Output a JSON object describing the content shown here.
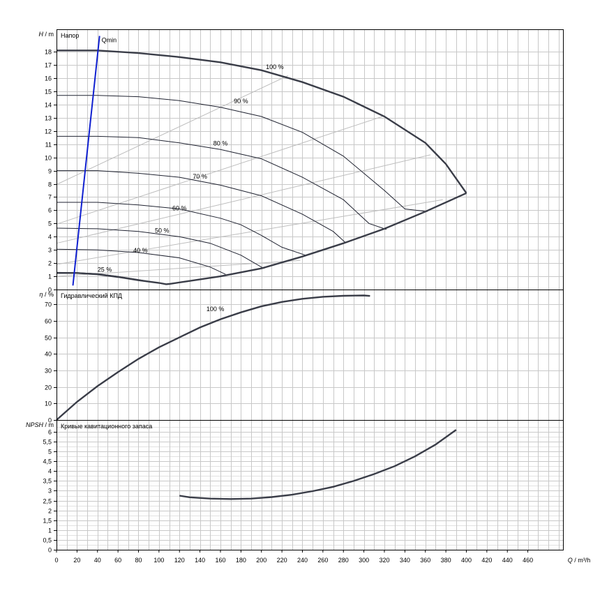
{
  "colors": {
    "grid": "#c8c8c8",
    "curve": "#3a3d48",
    "qmin": "#1020d0"
  },
  "chart_data": [
    {
      "type": "line",
      "panel": "head",
      "title": "Напор",
      "ylabel_sym": "H",
      "ylabel_unit": " / m",
      "ylim": [
        0,
        19.7
      ],
      "yticks": [
        0,
        1,
        2,
        3,
        4,
        5,
        6,
        7,
        8,
        9,
        10,
        11,
        12,
        13,
        14,
        15,
        16,
        17,
        18
      ],
      "max_curve": [
        [
          0,
          18.1
        ],
        [
          40,
          18.1
        ],
        [
          80,
          17.9
        ],
        [
          120,
          17.6
        ],
        [
          160,
          17.2
        ],
        [
          200,
          16.6
        ],
        [
          240,
          15.7
        ],
        [
          280,
          14.6
        ],
        [
          320,
          13.1
        ],
        [
          360,
          11.1
        ],
        [
          380,
          9.5
        ],
        [
          400,
          7.3
        ]
      ],
      "min_curve": [
        [
          0,
          1.25
        ],
        [
          20,
          1.25
        ],
        [
          40,
          1.15
        ],
        [
          60,
          0.95
        ],
        [
          80,
          0.7
        ],
        [
          100,
          0.5
        ],
        [
          107,
          0.4
        ],
        [
          110,
          0.42
        ],
        [
          130,
          0.65
        ],
        [
          160,
          1.0
        ],
        [
          200,
          1.6
        ],
        [
          240,
          2.5
        ],
        [
          280,
          3.5
        ],
        [
          320,
          4.6
        ],
        [
          360,
          5.9
        ],
        [
          400,
          7.3
        ]
      ],
      "speed_curves": [
        {
          "label": "90 %",
          "label_pos": [
            180,
            14.1
          ],
          "points": [
            [
              0,
              14.7
            ],
            [
              40,
              14.7
            ],
            [
              80,
              14.6
            ],
            [
              120,
              14.3
            ],
            [
              160,
              13.8
            ],
            [
              200,
              13.1
            ],
            [
              240,
              11.9
            ],
            [
              280,
              10.1
            ],
            [
              320,
              7.5
            ],
            [
              340,
              6.1
            ],
            [
              362,
              5.9
            ]
          ]
        },
        {
          "label": "80 %",
          "label_pos": [
            160,
            10.9
          ],
          "points": [
            [
              0,
              11.6
            ],
            [
              40,
              11.6
            ],
            [
              80,
              11.5
            ],
            [
              120,
              11.1
            ],
            [
              160,
              10.6
            ],
            [
              200,
              9.9
            ],
            [
              240,
              8.5
            ],
            [
              280,
              6.8
            ],
            [
              305,
              5.0
            ],
            [
              322,
              4.55
            ]
          ]
        },
        {
          "label": "70 %",
          "label_pos": [
            140,
            8.4
          ],
          "points": [
            [
              0,
              9.0
            ],
            [
              40,
              9.0
            ],
            [
              80,
              8.8
            ],
            [
              120,
              8.5
            ],
            [
              160,
              7.9
            ],
            [
              200,
              7.1
            ],
            [
              240,
              5.7
            ],
            [
              270,
              4.4
            ],
            [
              282,
              3.55
            ]
          ]
        },
        {
          "label": "60 %",
          "label_pos": [
            120,
            6.0
          ],
          "points": [
            [
              0,
              6.6
            ],
            [
              40,
              6.6
            ],
            [
              80,
              6.4
            ],
            [
              120,
              6.1
            ],
            [
              160,
              5.4
            ],
            [
              180,
              4.9
            ],
            [
              200,
              4.1
            ],
            [
              220,
              3.2
            ],
            [
              243,
              2.6
            ]
          ]
        },
        {
          "label": "50 %",
          "label_pos": [
            103,
            4.3
          ],
          "points": [
            [
              0,
              4.65
            ],
            [
              40,
              4.6
            ],
            [
              80,
              4.4
            ],
            [
              120,
              4.0
            ],
            [
              150,
              3.5
            ],
            [
              180,
              2.6
            ],
            [
              200,
              1.7
            ],
            [
              203,
              1.6
            ]
          ]
        },
        {
          "label": "40 %",
          "label_pos": [
            82,
            2.8
          ],
          "points": [
            [
              0,
              3.05
            ],
            [
              40,
              3.0
            ],
            [
              80,
              2.8
            ],
            [
              120,
              2.4
            ],
            [
              150,
              1.7
            ],
            [
              165,
              1.15
            ]
          ]
        },
        {
          "label": "25 %",
          "label_pos": [
            47,
            1.35
          ],
          "points": [
            [
              0,
              1.3
            ],
            [
              20,
              1.28
            ],
            [
              40,
              1.2
            ],
            [
              60,
              1.0
            ],
            [
              80,
              0.75
            ],
            [
              100,
              0.5
            ],
            [
              107,
              0.42
            ]
          ]
        }
      ],
      "rays": [
        [
          [
            0,
            7.95
          ],
          [
            226,
            16.2
          ]
        ],
        [
          [
            0,
            4.95
          ],
          [
            318,
            13.1
          ]
        ],
        [
          [
            0,
            3.5
          ],
          [
            365,
            10.2
          ]
        ],
        [
          [
            0,
            1.9
          ],
          [
            377,
            6.8
          ]
        ],
        [
          [
            0,
            1.0
          ],
          [
            238,
            2.2
          ]
        ]
      ],
      "max_label": {
        "text": "100 %",
        "pos": [
          213,
          16.7
        ]
      },
      "qmin": {
        "label": "Qmin",
        "points": [
          [
            16,
            0.3
          ],
          [
            42,
            19.2
          ]
        ]
      }
    },
    {
      "type": "line",
      "panel": "efficiency",
      "title": "Гидравлический КПД",
      "ylabel_sym": "η",
      "ylabel_unit": " / %",
      "ylim": [
        0,
        79
      ],
      "yticks": [
        0,
        10,
        20,
        30,
        40,
        50,
        60,
        70
      ],
      "series": [
        {
          "name": "100 %",
          "label_pos": [
            155,
            66
          ],
          "points": [
            [
              0,
              0
            ],
            [
              20,
              11
            ],
            [
              40,
              20.5
            ],
            [
              60,
              29
            ],
            [
              80,
              37
            ],
            [
              100,
              44
            ],
            [
              120,
              50
            ],
            [
              140,
              56
            ],
            [
              160,
              61
            ],
            [
              180,
              65.2
            ],
            [
              200,
              68.8
            ],
            [
              220,
              71.5
            ],
            [
              240,
              73.4
            ],
            [
              260,
              74.6
            ],
            [
              280,
              75.2
            ],
            [
              300,
              75.4
            ],
            [
              306,
              75.1
            ]
          ]
        }
      ]
    },
    {
      "type": "line",
      "panel": "npsh",
      "title": "Кривые кавитационного запаса",
      "ylabel_sym": "NPSH",
      "ylabel_unit": " / m",
      "ylim": [
        0,
        6.6
      ],
      "yticks": [
        0,
        0.5,
        1,
        1.5,
        2,
        2.5,
        3,
        3.5,
        4,
        4.5,
        5,
        5.5,
        6
      ],
      "series": [
        {
          "name": "",
          "points": [
            [
              120,
              2.75
            ],
            [
              130,
              2.67
            ],
            [
              150,
              2.6
            ],
            [
              170,
              2.58
            ],
            [
              190,
              2.6
            ],
            [
              210,
              2.68
            ],
            [
              230,
              2.8
            ],
            [
              250,
              2.98
            ],
            [
              270,
              3.2
            ],
            [
              290,
              3.5
            ],
            [
              310,
              3.85
            ],
            [
              330,
              4.25
            ],
            [
              350,
              4.75
            ],
            [
              370,
              5.35
            ],
            [
              390,
              6.1
            ]
          ]
        }
      ]
    }
  ],
  "xaxis": {
    "label_sym": "Q",
    "label_unit": " / m³/h",
    "ticks": [
      0,
      20,
      40,
      60,
      80,
      100,
      120,
      140,
      160,
      180,
      200,
      220,
      240,
      260,
      280,
      300,
      320,
      340,
      360,
      380,
      400,
      420,
      440,
      460
    ],
    "xlim": [
      0,
      495
    ]
  }
}
